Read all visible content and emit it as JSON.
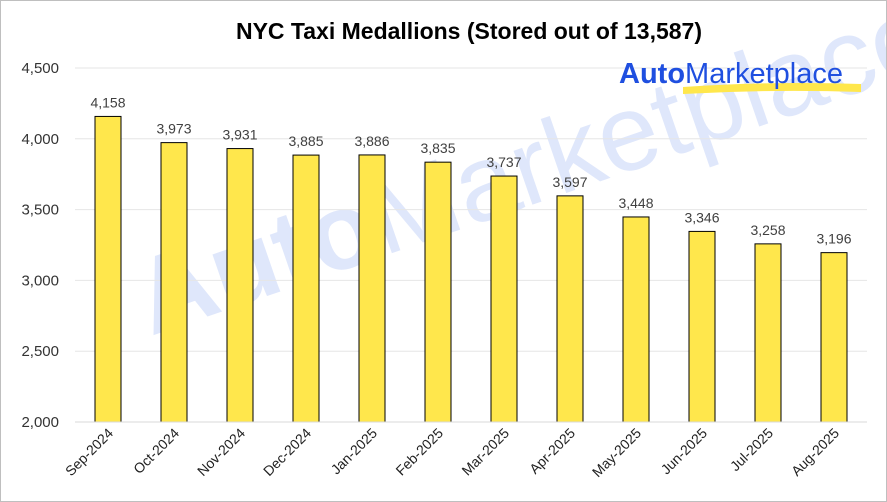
{
  "chart_data": {
    "type": "bar",
    "title": "NYC Taxi Medallions (Stored out of 13,587)",
    "categories": [
      "Sep-2024",
      "Oct-2024",
      "Nov-2024",
      "Dec-2024",
      "Jan-2025",
      "Feb-2025",
      "Mar-2025",
      "Apr-2025",
      "May-2025",
      "Jun-2025",
      "Jul-2025",
      "Aug-2025"
    ],
    "values": [
      4158,
      3973,
      3931,
      3885,
      3886,
      3835,
      3737,
      3597,
      3448,
      3346,
      3258,
      3196
    ],
    "value_labels": [
      "4,158",
      "3,973",
      "3,931",
      "3,885",
      "3,886",
      "3,835",
      "3,737",
      "3,597",
      "3,448",
      "3,346",
      "3,258",
      "3,196"
    ],
    "ylim": [
      2000,
      4500
    ],
    "yticks": [
      2000,
      2500,
      3000,
      3500,
      4000,
      4500
    ],
    "ytick_labels": [
      "2,000",
      "2,500",
      "3,000",
      "3,500",
      "4,000",
      "4,500"
    ],
    "grid": true,
    "xlabel": "",
    "ylabel": "",
    "bar_color": "#FFE74C",
    "bar_edge_color": "#000000",
    "gridline_color": "#e6e6e6"
  },
  "logo": {
    "text_bold": "Auto",
    "text_regular": "Marketplace",
    "color": "#1F4FE0",
    "underline_color": "#FFE74C"
  },
  "watermark": {
    "text_bold": "Auto",
    "text_regular": "Marketplace",
    "color": "#DFE7FB"
  }
}
